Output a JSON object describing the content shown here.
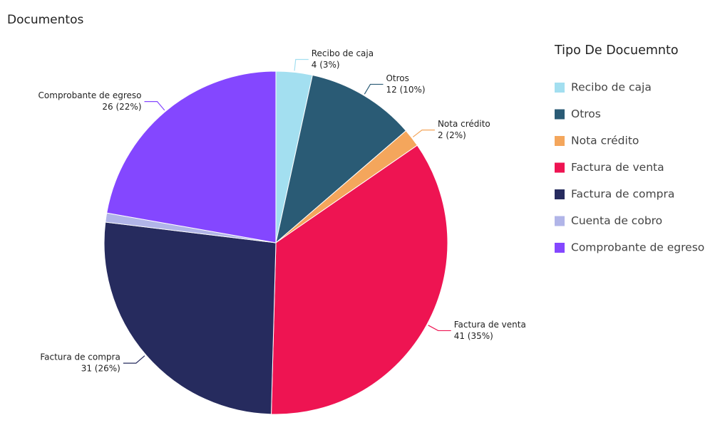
{
  "chart_data": {
    "type": "pie",
    "title": "Documentos",
    "legend_title": "Tipo De Docuemnto",
    "categories": [
      "Recibo de caja",
      "Otros",
      "Nota crédito",
      "Factura de venta",
      "Factura de compra",
      "Cuenta de cobro",
      "Comprobante de egreso"
    ],
    "values": [
      4,
      12,
      2,
      41,
      31,
      1,
      26
    ],
    "value_labels": [
      "4 (3%)",
      "12 (10%)",
      "2 (2%)",
      "41 (35%)",
      "31 (26%)",
      null,
      "26 (22%)"
    ],
    "colors": [
      "#a3dff0",
      "#2a5b75",
      "#f4a65c",
      "#ee1452",
      "#262b5e",
      "#b1b5e8",
      "#8447ff"
    ],
    "legend": "right"
  }
}
